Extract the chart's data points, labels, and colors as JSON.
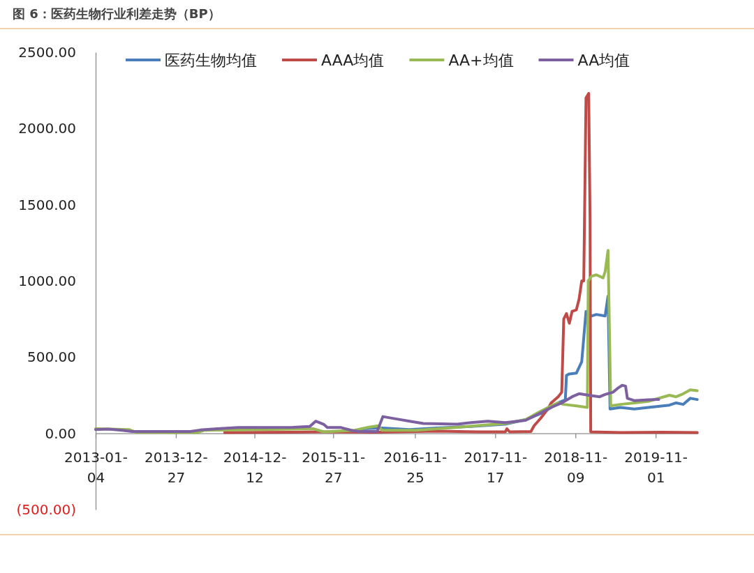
{
  "chart_data": {
    "type": "line",
    "title": "图 6：医药生物行业利差走势（BP）",
    "xlim": [
      "2013-01-04",
      "2020-05-08"
    ],
    "xticks": [
      "2013-01-04",
      "2013-12-27",
      "2014-12-12",
      "2015-11-27",
      "2016-11-25",
      "2017-11-17",
      "2018-11-09",
      "2019-11-01"
    ],
    "ylim": [
      -500,
      2500
    ],
    "yticks": [
      {
        "value": -500,
        "label": "(500.00)"
      },
      {
        "value": 0,
        "label": "0.00"
      },
      {
        "value": 500,
        "label": "500.00"
      },
      {
        "value": 1000,
        "label": "1000.00"
      },
      {
        "value": 1500,
        "label": "1500.00"
      },
      {
        "value": 2000,
        "label": "2000.00"
      },
      {
        "value": 2500,
        "label": "2500.00"
      }
    ],
    "grid": false,
    "legend": "top",
    "marker": "none",
    "line_style": "solid",
    "series": [
      {
        "name": "医药生物均值",
        "color": "#4a7ebb",
        "x": [
          "2016-04-01",
          "2016-07-01",
          "2016-11-01",
          "2017-03-01",
          "2017-08-01",
          "2018-01-01",
          "2018-04-01",
          "2018-06-08",
          "2018-07-24",
          "2018-08-24",
          "2018-09-25",
          "2018-09-30",
          "2018-10-13",
          "2018-11-13",
          "2018-12-07",
          "2018-12-26",
          "2019-01-19",
          "2019-02-10",
          "2019-03-21",
          "2019-04-03",
          "2019-04-12",
          "2019-05-28",
          "2019-07-29",
          "2019-09-29",
          "2020-01-01",
          "2020-01-31",
          "2020-03-03",
          "2020-04-03",
          "2020-05-04"
        ],
        "values": [
          30,
          35,
          25,
          35,
          45,
          60,
          90,
          130,
          170,
          200,
          220,
          380,
          390,
          395,
          470,
          800,
          770,
          780,
          770,
          900,
          160,
          170,
          160,
          170,
          185,
          200,
          190,
          230,
          222
        ]
      },
      {
        "name": "AAA均值",
        "color": "#be4b48",
        "x": [
          "2014-08-01",
          "2015-06-01",
          "2015-10-01",
          "2016-06-01",
          "2017-03-01",
          "2017-09-01",
          "2018-01-01",
          "2018-01-08",
          "2018-01-20",
          "2018-04-25",
          "2018-05-09",
          "2018-06-08",
          "2018-07-09",
          "2018-07-24",
          "2018-08-24",
          "2018-09-09",
          "2018-09-18",
          "2018-09-30",
          "2018-10-13",
          "2018-10-25",
          "2018-11-13",
          "2018-11-25",
          "2018-12-07",
          "2018-12-16",
          "2018-12-26",
          "2019-01-07",
          "2019-01-13",
          "2019-01-16",
          "2019-06-01",
          "2019-12-01",
          "2020-05-04"
        ],
        "values": [
          5,
          8,
          10,
          8,
          15,
          10,
          10,
          30,
          10,
          12,
          50,
          100,
          160,
          200,
          240,
          270,
          750,
          786,
          722,
          800,
          810,
          880,
          1000,
          1000,
          2200,
          2230,
          1400,
          10,
          5,
          8,
          5
        ]
      },
      {
        "name": "AA+均值",
        "color": "#98b954",
        "x": [
          "2013-01-04",
          "2013-06-01",
          "2013-07-01",
          "2014-04-01",
          "2014-05-01",
          "2015-01-01",
          "2015-09-01",
          "2015-10-15",
          "2016-03-01",
          "2016-05-01",
          "2016-06-15",
          "2016-07-01",
          "2016-12-01",
          "2017-06-01",
          "2017-10-01",
          "2018-01-01",
          "2018-04-01",
          "2018-06-01",
          "2018-07-24",
          "2018-08-24",
          "2018-09-18",
          "2018-11-13",
          "2019-01-01",
          "2019-01-05",
          "2019-01-19",
          "2019-02-10",
          "2019-03-12",
          "2019-03-21",
          "2019-04-03",
          "2019-04-15",
          "2019-05-28",
          "2019-07-29",
          "2019-09-29",
          "2020-01-01",
          "2020-01-31",
          "2020-03-03",
          "2020-04-03",
          "2020-05-04"
        ],
        "values": [
          30,
          25,
          8,
          5,
          20,
          25,
          30,
          10,
          20,
          40,
          50,
          20,
          20,
          40,
          55,
          65,
          90,
          140,
          180,
          200,
          190,
          180,
          170,
          1000,
          1030,
          1040,
          1020,
          1060,
          1200,
          180,
          190,
          200,
          210,
          250,
          240,
          260,
          285,
          280
        ]
      },
      {
        "name": "AA均值",
        "color": "#7d60a0",
        "x": [
          "2013-01-04",
          "2013-03-01",
          "2013-05-01",
          "2013-06-15",
          "2013-10-01",
          "2014-03-01",
          "2014-04-15",
          "2014-07-01",
          "2014-10-01",
          "2015-01-01",
          "2015-06-01",
          "2015-08-15",
          "2015-09-10",
          "2015-10-15",
          "2015-11-01",
          "2016-01-01",
          "2016-02-15",
          "2016-03-20",
          "2016-06-10",
          "2016-07-05",
          "2016-09-01",
          "2016-11-01",
          "2017-01-01",
          "2017-06-01",
          "2017-08-01",
          "2017-10-15",
          "2018-01-01",
          "2018-04-01",
          "2018-06-01",
          "2018-07-24",
          "2018-09-09",
          "2018-10-25",
          "2018-11-25",
          "2019-01-07",
          "2019-02-25",
          "2019-03-21",
          "2019-04-25",
          "2019-05-20",
          "2019-06-05",
          "2019-06-20",
          "2019-06-28",
          "2019-07-29",
          "2019-09-29",
          "2019-11-14"
        ],
        "values": [
          25,
          28,
          20,
          12,
          12,
          12,
          22,
          30,
          38,
          38,
          40,
          45,
          80,
          60,
          38,
          38,
          20,
          12,
          12,
          110,
          95,
          80,
          65,
          60,
          70,
          80,
          70,
          85,
          130,
          170,
          200,
          240,
          260,
          250,
          240,
          255,
          270,
          300,
          315,
          310,
          230,
          215,
          220,
          222
        ]
      }
    ]
  }
}
